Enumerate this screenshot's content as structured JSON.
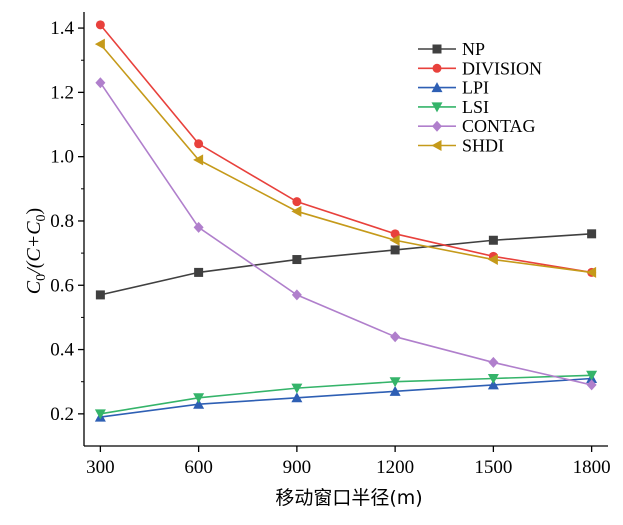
{
  "chart_data": {
    "type": "line",
    "xlabel": "移动窗口半径(m)",
    "ylabel": {
      "c": "C",
      "sub0": "0",
      "mid": "/(C+C",
      "sub1": "0",
      "end": ")"
    },
    "x": [
      300,
      600,
      900,
      1200,
      1500,
      1800
    ],
    "xlim": [
      250,
      1850
    ],
    "ylim": [
      0.1,
      1.45
    ],
    "xticks": [
      "300",
      "600",
      "900",
      "1200",
      "1500",
      "1800"
    ],
    "yticks": [
      "0.2",
      "0.4",
      "0.6",
      "0.8",
      "1.0",
      "1.2",
      "1.4"
    ],
    "ytick_values": [
      0.2,
      0.4,
      0.6,
      0.8,
      1.0,
      1.2,
      1.4
    ],
    "grid": false,
    "legend_position": "top-right",
    "series": [
      {
        "name": "NP",
        "color": "#404040",
        "marker": "square",
        "values": [
          0.57,
          0.64,
          0.68,
          0.71,
          0.74,
          0.76
        ]
      },
      {
        "name": "DIVISION",
        "color": "#e8413c",
        "marker": "circle",
        "values": [
          1.41,
          1.04,
          0.86,
          0.76,
          0.69,
          0.64
        ]
      },
      {
        "name": "LPI",
        "color": "#2e5fb4",
        "marker": "triangle-up",
        "values": [
          0.19,
          0.23,
          0.25,
          0.27,
          0.29,
          0.31
        ]
      },
      {
        "name": "LSI",
        "color": "#35b46a",
        "marker": "triangle-down",
        "values": [
          0.2,
          0.25,
          0.28,
          0.3,
          0.31,
          0.32
        ]
      },
      {
        "name": "CONTAG",
        "color": "#b07fcc",
        "marker": "diamond",
        "values": [
          1.23,
          0.78,
          0.57,
          0.44,
          0.36,
          0.29
        ]
      },
      {
        "name": "SHDI",
        "color": "#c59a1a",
        "marker": "triangle-left",
        "values": [
          1.35,
          0.99,
          0.83,
          0.74,
          0.68,
          0.64
        ]
      }
    ]
  }
}
